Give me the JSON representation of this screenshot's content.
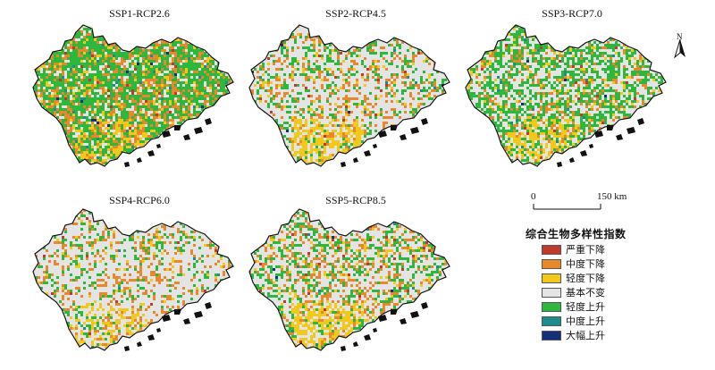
{
  "panels": [
    {
      "title": "SSP1-RCP2.6",
      "mix": {
        "severe_decline": 0.01,
        "moderate_decline": 0.2,
        "slight_decline": 0.07,
        "no_change": 0.16,
        "slight_increase": 0.54,
        "moderate_increase": 0.015,
        "large_increase": 0.005
      },
      "south_yellow": 0.2
    },
    {
      "title": "SSP2-RCP4.5",
      "mix": {
        "severe_decline": 0.01,
        "moderate_decline": 0.14,
        "slight_decline": 0.04,
        "no_change": 0.62,
        "slight_increase": 0.18,
        "moderate_increase": 0.007,
        "large_increase": 0.003
      },
      "south_yellow": 0.45
    },
    {
      "title": "SSP3-RCP7.0",
      "mix": {
        "severe_decline": 0.006,
        "moderate_decline": 0.1,
        "slight_decline": 0.05,
        "no_change": 0.42,
        "slight_increase": 0.41,
        "moderate_increase": 0.01,
        "large_increase": 0.004
      },
      "south_yellow": 0.4
    },
    {
      "title": "SSP4-RCP6.0",
      "mix": {
        "severe_decline": 0.006,
        "moderate_decline": 0.12,
        "slight_decline": 0.03,
        "no_change": 0.7,
        "slight_increase": 0.14,
        "moderate_increase": 0.004,
        "large_increase": 0.0
      },
      "south_yellow": 0.25
    },
    {
      "title": "SSP5-RCP8.5",
      "mix": {
        "severe_decline": 0.01,
        "moderate_decline": 0.15,
        "slight_decline": 0.05,
        "no_change": 0.55,
        "slight_increase": 0.23,
        "moderate_increase": 0.008,
        "large_increase": 0.002
      },
      "south_yellow": 0.45
    }
  ],
  "north_arrow": {
    "label": "N"
  },
  "scale_bar": {
    "start_label": "0",
    "end_label": "150 km"
  },
  "legend": {
    "title": "综合生物多样性指数",
    "items": [
      {
        "label": "严重下降",
        "color": "#c0392b"
      },
      {
        "label": "中度下降",
        "color": "#e8882a"
      },
      {
        "label": "轻度下降",
        "color": "#f2c91b"
      },
      {
        "label": "基本不变",
        "color": "#e4e4e4"
      },
      {
        "label": "轻度上升",
        "color": "#2db83d"
      },
      {
        "label": "中度上升",
        "color": "#1e8c8c"
      },
      {
        "label": "大幅上升",
        "color": "#14307a"
      }
    ]
  },
  "colors": {
    "severe_decline": "#c0392b",
    "moderate_decline": "#e8882a",
    "slight_decline": "#f2c91b",
    "no_change": "#e4e4e4",
    "slight_increase": "#2db83d",
    "moderate_increase": "#1e8c8c",
    "large_increase": "#14307a",
    "boundary": "#111111"
  }
}
